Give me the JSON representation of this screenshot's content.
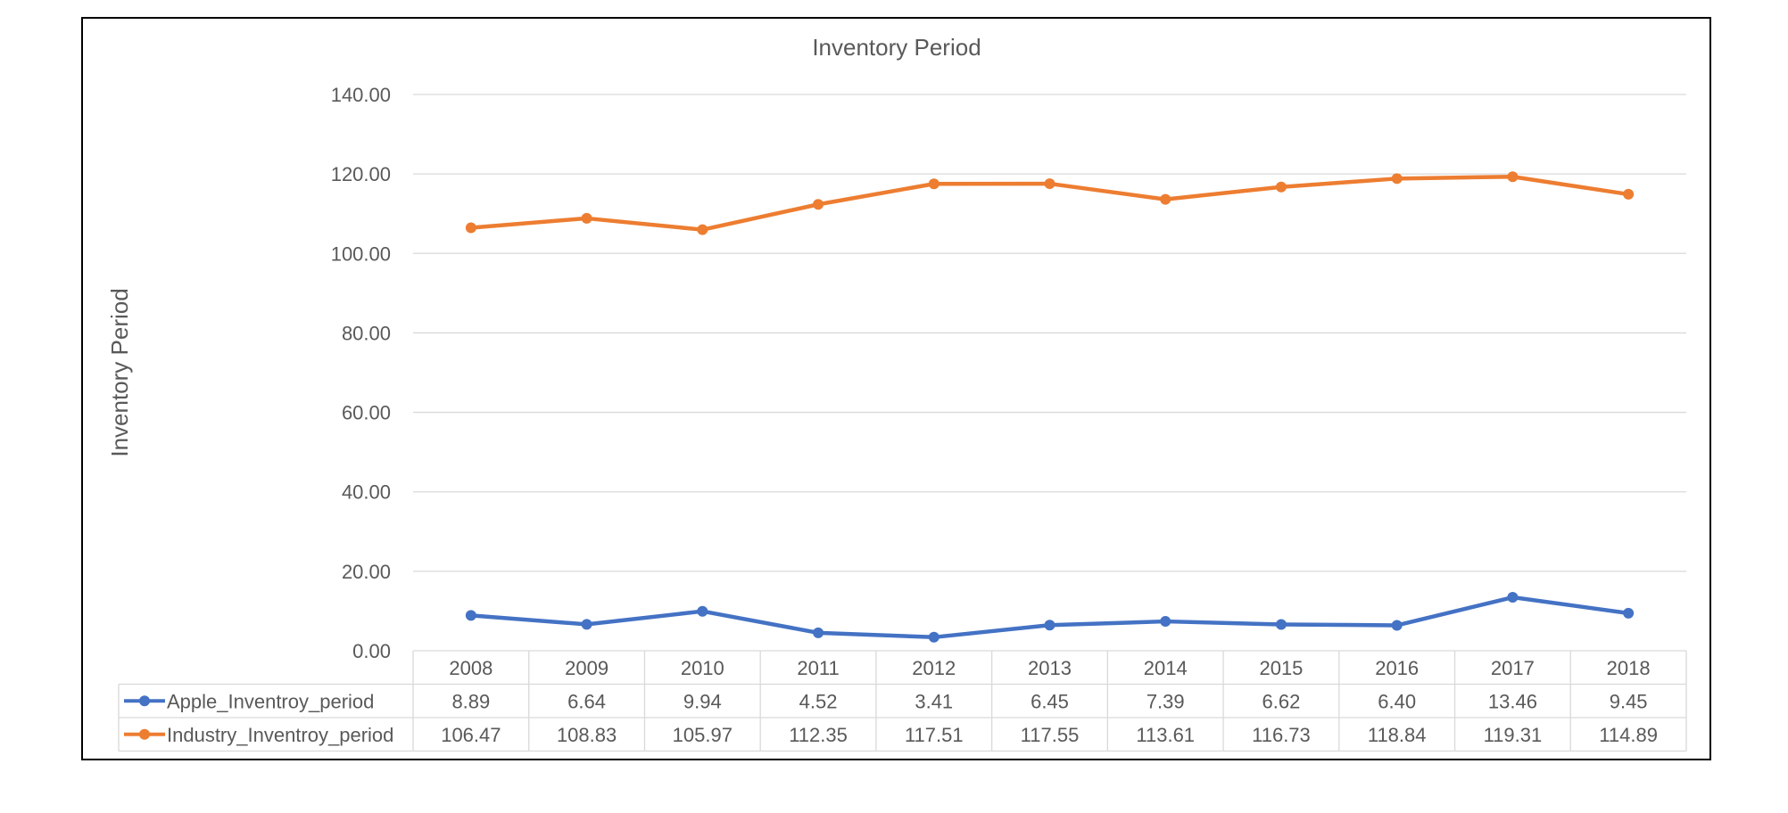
{
  "chart_data": {
    "type": "line",
    "title": "Inventory Period",
    "ylabel": "Inventory Period",
    "xlabel": "",
    "ylim": [
      0,
      140
    ],
    "y_ticks": [
      "0.00",
      "20.00",
      "40.00",
      "60.00",
      "80.00",
      "100.00",
      "120.00",
      "140.00"
    ],
    "grid": true,
    "legend": "data-table",
    "categories": [
      "2008",
      "2009",
      "2010",
      "2011",
      "2012",
      "2013",
      "2014",
      "2015",
      "2016",
      "2017",
      "2018"
    ],
    "series": [
      {
        "name": "Apple_Inventroy_period",
        "color": "#4472C4",
        "values": [
          8.89,
          6.64,
          9.94,
          4.52,
          3.41,
          6.45,
          7.39,
          6.62,
          6.4,
          13.46,
          9.45
        ],
        "labels": [
          "8.89",
          "6.64",
          "9.94",
          "4.52",
          "3.41",
          "6.45",
          "7.39",
          "6.62",
          "6.40",
          "13.46",
          "9.45"
        ]
      },
      {
        "name": "Industry_Inventroy_period",
        "color": "#ED7D31",
        "values": [
          106.47,
          108.83,
          105.97,
          112.35,
          117.51,
          117.55,
          113.61,
          116.73,
          118.84,
          119.31,
          114.89
        ],
        "labels": [
          "106.47",
          "108.83",
          "105.97",
          "112.35",
          "117.51",
          "117.55",
          "113.61",
          "116.73",
          "118.84",
          "119.31",
          "114.89"
        ]
      }
    ]
  }
}
